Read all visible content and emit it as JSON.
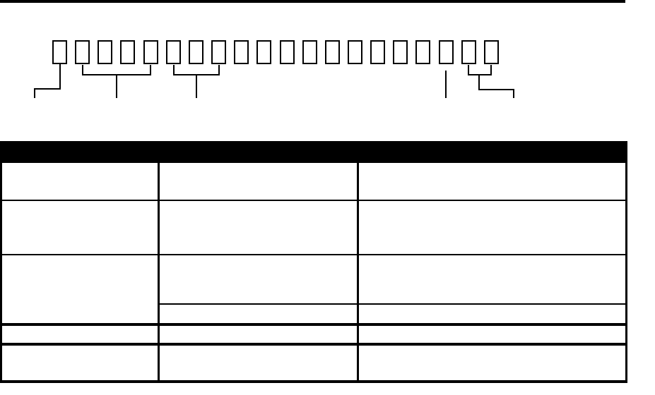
{
  "page": {
    "paper_color": "#ffffff",
    "ink_color": "#000000"
  },
  "top_rule": {
    "present": true
  },
  "char_field": {
    "box_count": 20,
    "box_groups": [
      {
        "boxes": "1",
        "pointer": "step-down-left",
        "label": ""
      },
      {
        "boxes": "2-5",
        "pointer": "bracket-stem-down",
        "label": ""
      },
      {
        "boxes": "6-8",
        "pointer": "bracket-stem-down",
        "label": ""
      },
      {
        "boxes": "18",
        "pointer": "plain-line-down",
        "label": ""
      },
      {
        "boxes": "19-20",
        "pointer": "bracket-step-down-right",
        "label": ""
      }
    ]
  },
  "table": {
    "header": {
      "text": "",
      "background": "#000000"
    },
    "column_count": 3,
    "rows": [
      {
        "cells": [
          "",
          "",
          ""
        ]
      },
      {
        "cells": [
          "",
          "",
          ""
        ]
      },
      {
        "cells": [
          "",
          "",
          ""
        ]
      },
      {
        "cells": [
          "",
          ""
        ]
      },
      {
        "cells": [
          "",
          "",
          ""
        ]
      },
      {
        "cells": [
          "",
          "",
          ""
        ]
      }
    ]
  }
}
